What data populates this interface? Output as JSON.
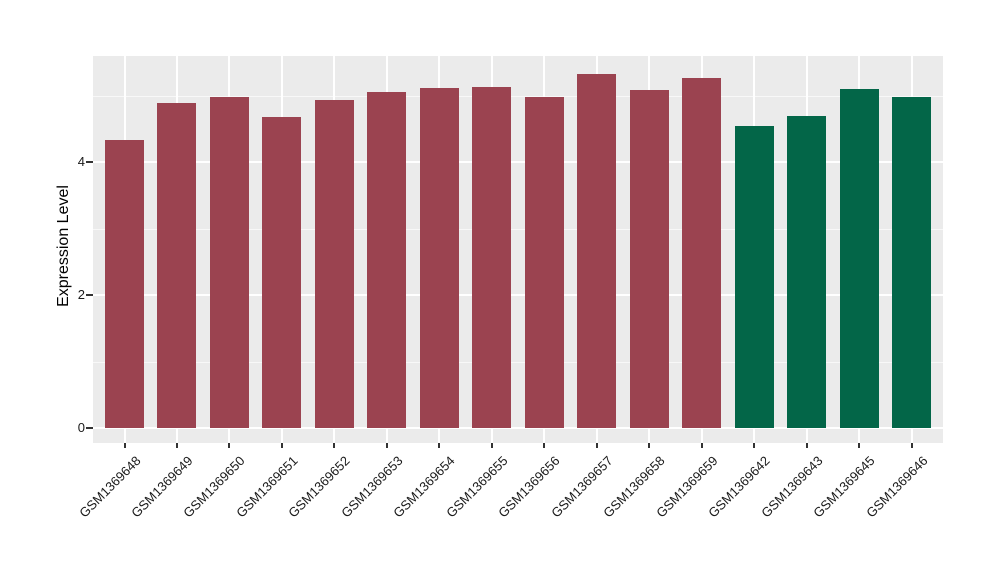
{
  "chart_data": {
    "type": "bar",
    "title": "",
    "xlabel": "",
    "ylabel": "Expression Level",
    "categories": [
      "GSM1369648",
      "GSM1369649",
      "GSM1369650",
      "GSM1369651",
      "GSM1369652",
      "GSM1369653",
      "GSM1369654",
      "GSM1369655",
      "GSM1369656",
      "GSM1369657",
      "GSM1369658",
      "GSM1369659",
      "GSM1369642",
      "GSM1369643",
      "GSM1369645",
      "GSM1369646"
    ],
    "values": [
      4.33,
      4.89,
      4.98,
      4.68,
      4.93,
      5.05,
      5.11,
      5.13,
      4.98,
      5.32,
      5.08,
      5.26,
      4.54,
      4.69,
      5.1,
      4.98
    ],
    "bar_groups": [
      "A",
      "A",
      "A",
      "A",
      "A",
      "A",
      "A",
      "A",
      "A",
      "A",
      "A",
      "A",
      "B",
      "B",
      "B",
      "B"
    ],
    "group_colors": {
      "A": "#9B4350",
      "B": "#036648"
    },
    "yticks": {
      "major": [
        0,
        2,
        4
      ],
      "minor": [
        1,
        3,
        5
      ],
      "labels": [
        "0",
        "2",
        "4"
      ]
    },
    "ylim": [
      -0.23,
      5.59
    ],
    "x_tick_rotation_deg": -45,
    "grid": true,
    "legend": "none",
    "panel_background": "#EBEBEB",
    "grid_major_color": "#FFFFFF",
    "grid_minor_color": "rgba(255,255,255,0.65)",
    "tick_mark_color": "#333333",
    "axis_text_color": "#1a1a1a"
  }
}
